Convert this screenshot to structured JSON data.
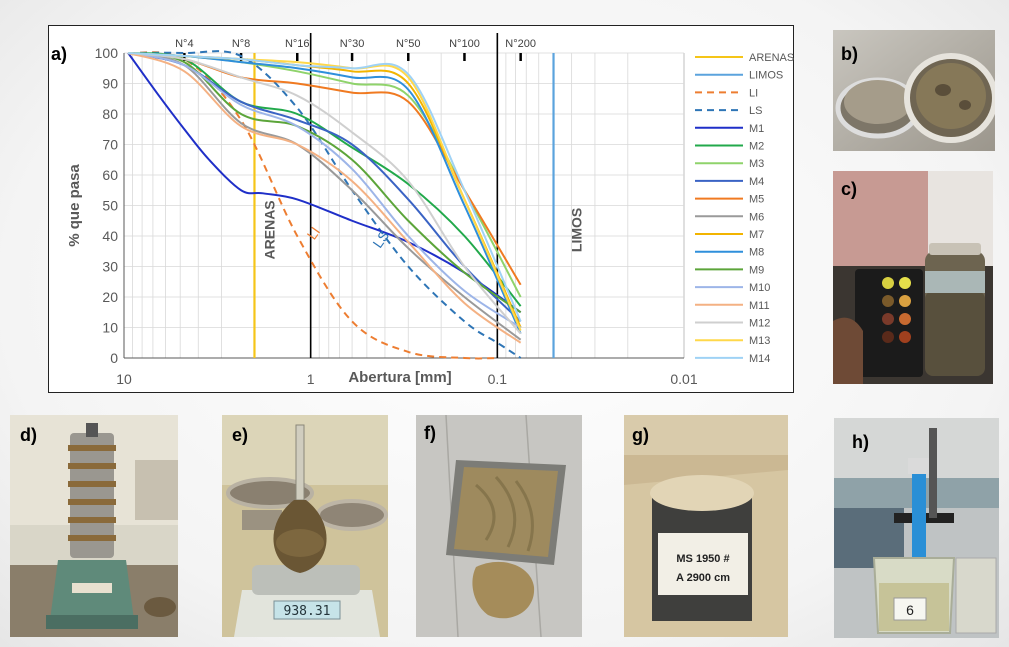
{
  "panel_labels": {
    "a": "a)",
    "b": "b)",
    "c": "c)",
    "d": "d)",
    "e": "e)",
    "f": "f)",
    "g": "g)",
    "h": "h)"
  },
  "chart_data": {
    "type": "line",
    "xlabel": "Abertura [mm]",
    "ylabel": "% que pasa",
    "xscale": "log-reversed",
    "xlim": [
      10,
      0.01
    ],
    "ylim": [
      0,
      100
    ],
    "x_tick_labels": [
      "10",
      "1",
      "0.1",
      "0.01"
    ],
    "y_ticks": [
      0,
      10,
      20,
      30,
      40,
      50,
      60,
      70,
      80,
      90,
      100
    ],
    "sieves": [
      {
        "label": "N°4",
        "x": 4.75
      },
      {
        "label": "N°8",
        "x": 2.36
      },
      {
        "label": "N°16",
        "x": 1.18
      },
      {
        "label": "N°30",
        "x": 0.6
      },
      {
        "label": "N°50",
        "x": 0.3
      },
      {
        "label": "N°100",
        "x": 0.15
      },
      {
        "label": "N°200",
        "x": 0.075
      }
    ],
    "legend_position": "right",
    "boundaries": [
      {
        "name": "ARENAS",
        "x": 2.0,
        "color": "#f5c518",
        "label": "ARENAS"
      },
      {
        "name": "LIMOS",
        "x": 0.05,
        "color": "#5ba3dd",
        "label": "LIMOS"
      }
    ],
    "annotations": [
      {
        "text": "LI",
        "x": 0.92,
        "y": 40,
        "color": "#ed7d31"
      },
      {
        "text": "LS",
        "x": 0.4,
        "y": 38,
        "color": "#2e75b6"
      }
    ],
    "series": [
      {
        "name": "ARENAS",
        "kind": "boundary-legend",
        "color": "#f5c518",
        "dash": false
      },
      {
        "name": "LIMOS",
        "kind": "boundary-legend",
        "color": "#5ba3dd",
        "dash": false
      },
      {
        "name": "LI",
        "color": "#ed7d31",
        "dash": true,
        "x": [
          9.5,
          4.75,
          2.36,
          1.18,
          0.6,
          0.3,
          0.15,
          0.1
        ],
        "y": [
          100,
          98,
          78,
          40,
          12,
          2,
          0,
          0
        ]
      },
      {
        "name": "LS",
        "color": "#2e75b6",
        "dash": true,
        "x": [
          9.5,
          4.75,
          2.36,
          1.18,
          0.6,
          0.3,
          0.15,
          0.1,
          0.075
        ],
        "y": [
          100,
          100,
          99,
          82,
          55,
          30,
          12,
          5,
          0
        ]
      },
      {
        "name": "M1",
        "color": "#1f2fc8",
        "x": [
          9.5,
          6.5,
          4.75,
          3.5,
          2.36,
          1.8,
          1.18,
          0.6,
          0.3,
          0.15,
          0.075
        ],
        "y": [
          100,
          86,
          75,
          65,
          55,
          54,
          52,
          45,
          38,
          28,
          15
        ]
      },
      {
        "name": "M2",
        "color": "#22a94b",
        "x": [
          9.5,
          4.75,
          2.36,
          1.18,
          0.6,
          0.3,
          0.15,
          0.075
        ],
        "y": [
          100,
          98,
          84,
          80,
          69,
          57,
          40,
          17
        ]
      },
      {
        "name": "M3",
        "color": "#8fd36b",
        "x": [
          9.5,
          4.75,
          2.36,
          1.18,
          0.6,
          0.3,
          0.15,
          0.075
        ],
        "y": [
          100,
          99,
          97,
          94,
          90,
          86,
          55,
          20
        ]
      },
      {
        "name": "M4",
        "color": "#3a63c4",
        "x": [
          9.5,
          4.75,
          2.36,
          1.18,
          0.6,
          0.3,
          0.15,
          0.075
        ],
        "y": [
          100,
          96,
          84,
          78,
          70,
          52,
          30,
          12
        ]
      },
      {
        "name": "M5",
        "color": "#f07a21",
        "x": [
          9.5,
          4.75,
          2.36,
          1.18,
          0.6,
          0.3,
          0.15,
          0.075
        ],
        "y": [
          100,
          98,
          92,
          90,
          87,
          84,
          55,
          24
        ]
      },
      {
        "name": "M6",
        "color": "#9a9a9a",
        "x": [
          9.5,
          4.75,
          2.36,
          1.18,
          0.6,
          0.3,
          0.15,
          0.075
        ],
        "y": [
          100,
          96,
          77,
          70,
          55,
          36,
          20,
          6
        ]
      },
      {
        "name": "M7",
        "color": "#f2b400",
        "x": [
          9.5,
          4.75,
          2.36,
          1.18,
          0.6,
          0.3,
          0.15,
          0.075
        ],
        "y": [
          100,
          99,
          98,
          96,
          94,
          90,
          52,
          10
        ]
      },
      {
        "name": "M8",
        "color": "#2f8fdb",
        "x": [
          9.5,
          4.75,
          2.36,
          1.18,
          0.6,
          0.3,
          0.15,
          0.075
        ],
        "y": [
          100,
          99,
          97,
          95,
          92,
          88,
          50,
          8
        ]
      },
      {
        "name": "M9",
        "color": "#5ca53a",
        "x": [
          9.5,
          4.75,
          2.36,
          1.18,
          0.6,
          0.3,
          0.15,
          0.075
        ],
        "y": [
          100,
          97,
          80,
          76,
          65,
          45,
          28,
          15
        ]
      },
      {
        "name": "M10",
        "color": "#9db5e8",
        "x": [
          9.5,
          4.75,
          2.36,
          1.18,
          0.6,
          0.3,
          0.15,
          0.075
        ],
        "y": [
          100,
          96,
          83,
          76,
          62,
          40,
          22,
          10
        ]
      },
      {
        "name": "M11",
        "color": "#f4b183",
        "x": [
          9.5,
          4.75,
          2.36,
          1.18,
          0.6,
          0.3,
          0.15,
          0.075
        ],
        "y": [
          100,
          94,
          76,
          70,
          58,
          38,
          18,
          5
        ]
      },
      {
        "name": "M12",
        "color": "#cfcfcf",
        "x": [
          9.5,
          4.75,
          2.36,
          1.18,
          0.6,
          0.3,
          0.15,
          0.075
        ],
        "y": [
          100,
          98,
          92,
          86,
          74,
          58,
          30,
          8
        ]
      },
      {
        "name": "M13",
        "color": "#ffd84a",
        "x": [
          9.5,
          4.75,
          2.36,
          1.18,
          0.6,
          0.3,
          0.15,
          0.075
        ],
        "y": [
          100,
          99,
          98,
          97,
          95,
          92,
          52,
          9
        ]
      },
      {
        "name": "M14",
        "color": "#9fd2f5",
        "x": [
          9.5,
          4.75,
          2.36,
          1.18,
          0.6,
          0.3,
          0.15,
          0.075
        ],
        "y": [
          100,
          99,
          98,
          96,
          95,
          93,
          55,
          12
        ]
      }
    ]
  },
  "photos": {
    "b": {
      "kind": "sieve-pans"
    },
    "c": {
      "kind": "color-chart-jar"
    },
    "d": {
      "kind": "sieve-shaker"
    },
    "e": {
      "kind": "flask-on-scale",
      "display": "938.31"
    },
    "f": {
      "kind": "mud-tray"
    },
    "g": {
      "kind": "sample-can",
      "can_text": [
        "MS 1950 #",
        "A 2900 cm"
      ]
    },
    "h": {
      "kind": "ph-meter-beaker",
      "beaker_text": "6"
    }
  }
}
